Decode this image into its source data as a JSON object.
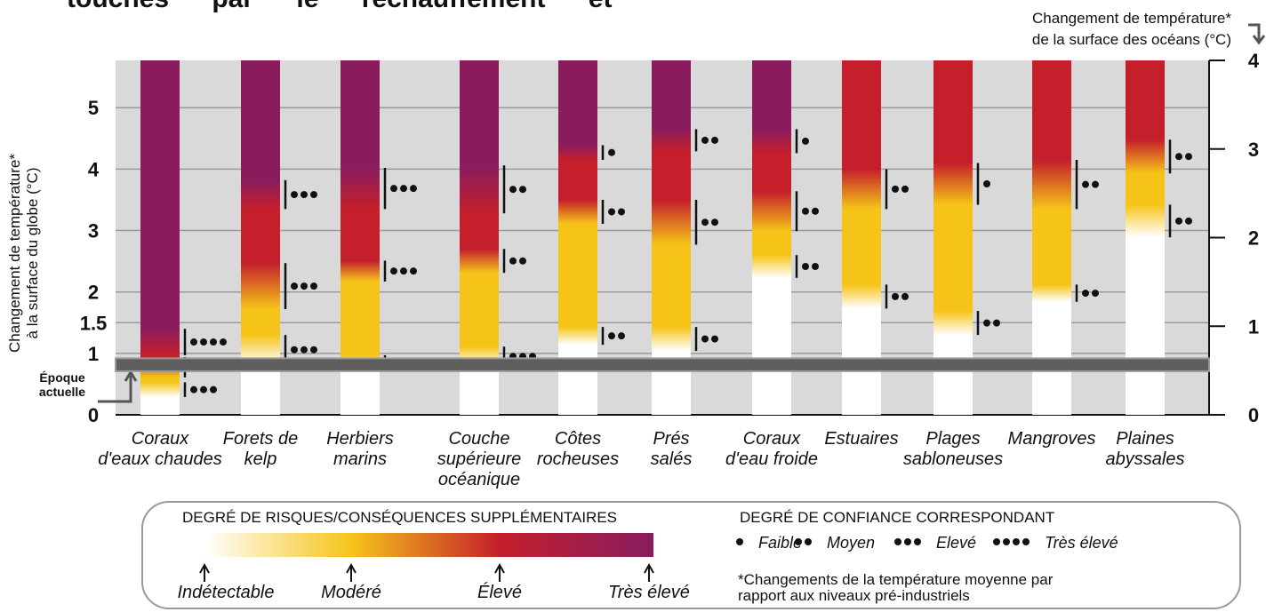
{
  "chart_data": {
    "type": "ember",
    "header_fragment": "touchés par le réchauffement et",
    "y_label": [
      "Changement de température*",
      "à la surface du globe (°C)"
    ],
    "y2_label": [
      "Changement de température*",
      "de la surface des océans (°C)"
    ],
    "ylim": [
      0,
      5.77
    ],
    "yticks": [
      0,
      1,
      1.5,
      2,
      3,
      4,
      5
    ],
    "y2lim": [
      0,
      4
    ],
    "y2ticks": [
      0,
      1,
      2,
      3,
      4
    ],
    "grid": true,
    "current_band": [
      0.71,
      0.92
    ],
    "current_label": [
      "Époque",
      "actuelle"
    ],
    "categories": [
      [
        "Coraux",
        "d'eaux chaudes"
      ],
      [
        "Forets de",
        "kelp"
      ],
      [
        "Herbiers",
        "marins"
      ],
      [
        "Couche",
        "supérieure",
        "océanique"
      ],
      [
        "Côtes",
        "rocheuses"
      ],
      [
        "Prés",
        "salés"
      ],
      [
        "Coraux",
        "d'eau froide"
      ],
      [
        "Estuaires"
      ],
      [
        "Plages",
        "sabloneuses"
      ],
      [
        "Mangroves"
      ],
      [
        "Plaines",
        "abyssales"
      ]
    ],
    "transitions": [
      [
        [
          0.29,
          0.53,
          3
        ],
        [
          0.61,
          0.94,
          4
        ],
        [
          0.97,
          1.4,
          4
        ]
      ],
      [
        [
          0.82,
          1.3,
          3
        ],
        [
          1.72,
          2.47,
          3
        ],
        [
          3.35,
          3.82,
          3
        ]
      ],
      [
        [
          0.71,
          0.97,
          4
        ],
        [
          2.17,
          2.51,
          3
        ],
        [
          3.35,
          4.02,
          3
        ]
      ],
      [
        [
          0.79,
          1.11,
          3
        ],
        [
          2.31,
          2.7,
          2
        ],
        [
          3.28,
          4.06,
          2
        ]
      ],
      [
        [
          1.14,
          1.43,
          2
        ],
        [
          3.11,
          3.5,
          2
        ],
        [
          4.15,
          4.39,
          1
        ]
      ],
      [
        [
          1.04,
          1.43,
          2
        ],
        [
          2.77,
          3.5,
          2
        ],
        [
          4.29,
          4.65,
          2
        ]
      ],
      [
        [
          2.23,
          2.6,
          2
        ],
        [
          2.99,
          3.64,
          2
        ],
        [
          4.26,
          4.65,
          1
        ]
      ],
      [
        [
          1.73,
          2.12,
          2
        ],
        [
          3.35,
          4.0,
          2
        ]
      ],
      [
        [
          1.3,
          1.69,
          2
        ],
        [
          3.42,
          4.1,
          1
        ]
      ],
      [
        [
          1.84,
          2.12,
          2
        ],
        [
          3.35,
          4.15,
          2
        ]
      ],
      [
        [
          2.89,
          3.42,
          2
        ],
        [
          3.93,
          4.48,
          2
        ]
      ]
    ],
    "risk_title": "DEGRÉ DE RISQUES/CONSÉQUENCES SUPPLÉMENTAIRES",
    "risk_levels": [
      {
        "label": "Indétectable",
        "color": "#ffffff"
      },
      {
        "label": "Modéré",
        "color": "#f6c419"
      },
      {
        "label": "Élevé",
        "color": "#c41f2b"
      },
      {
        "label": "Très élevé",
        "color": "#8a1c5e"
      }
    ],
    "confidence_title": "DEGRÉ DE CONFIANCE CORRESPONDANT",
    "confidence_levels": [
      {
        "label": "Faible",
        "dots": 1
      },
      {
        "label": "Moyen",
        "dots": 2
      },
      {
        "label": "Elevé",
        "dots": 3
      },
      {
        "label": "Très élevé",
        "dots": 4
      }
    ],
    "footnote": [
      "*Changements de la température moyenne par",
      "rapport aux niveaux pré-industriels"
    ]
  }
}
